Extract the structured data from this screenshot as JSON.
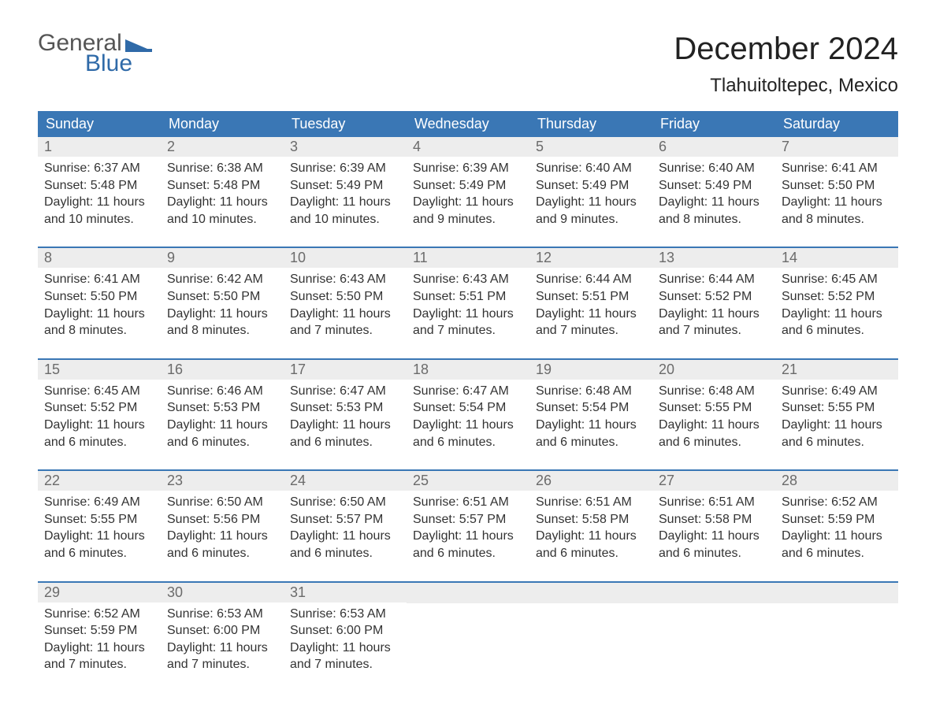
{
  "brand": {
    "text1": "General",
    "text2": "Blue",
    "flag_color": "#2f6aa8"
  },
  "title": "December 2024",
  "location": "Tlahuitoltepec, Mexico",
  "colors": {
    "header_bg": "#3a77b5",
    "header_text": "#ffffff",
    "daynum_bg": "#ededed",
    "daynum_text": "#6b6b6b",
    "body_text": "#333333",
    "background": "#ffffff",
    "rule": "#3a77b5"
  },
  "typography": {
    "title_fontsize": 40,
    "location_fontsize": 24,
    "header_fontsize": 18,
    "daynum_fontsize": 18,
    "body_fontsize": 16,
    "font_family": "Arial"
  },
  "day_labels": [
    "Sunday",
    "Monday",
    "Tuesday",
    "Wednesday",
    "Thursday",
    "Friday",
    "Saturday"
  ],
  "weeks": [
    [
      {
        "n": "1",
        "sunrise": "Sunrise: 6:37 AM",
        "sunset": "Sunset: 5:48 PM",
        "d1": "Daylight: 11 hours",
        "d2": "and 10 minutes."
      },
      {
        "n": "2",
        "sunrise": "Sunrise: 6:38 AM",
        "sunset": "Sunset: 5:48 PM",
        "d1": "Daylight: 11 hours",
        "d2": "and 10 minutes."
      },
      {
        "n": "3",
        "sunrise": "Sunrise: 6:39 AM",
        "sunset": "Sunset: 5:49 PM",
        "d1": "Daylight: 11 hours",
        "d2": "and 10 minutes."
      },
      {
        "n": "4",
        "sunrise": "Sunrise: 6:39 AM",
        "sunset": "Sunset: 5:49 PM",
        "d1": "Daylight: 11 hours",
        "d2": "and 9 minutes."
      },
      {
        "n": "5",
        "sunrise": "Sunrise: 6:40 AM",
        "sunset": "Sunset: 5:49 PM",
        "d1": "Daylight: 11 hours",
        "d2": "and 9 minutes."
      },
      {
        "n": "6",
        "sunrise": "Sunrise: 6:40 AM",
        "sunset": "Sunset: 5:49 PM",
        "d1": "Daylight: 11 hours",
        "d2": "and 8 minutes."
      },
      {
        "n": "7",
        "sunrise": "Sunrise: 6:41 AM",
        "sunset": "Sunset: 5:50 PM",
        "d1": "Daylight: 11 hours",
        "d2": "and 8 minutes."
      }
    ],
    [
      {
        "n": "8",
        "sunrise": "Sunrise: 6:41 AM",
        "sunset": "Sunset: 5:50 PM",
        "d1": "Daylight: 11 hours",
        "d2": "and 8 minutes."
      },
      {
        "n": "9",
        "sunrise": "Sunrise: 6:42 AM",
        "sunset": "Sunset: 5:50 PM",
        "d1": "Daylight: 11 hours",
        "d2": "and 8 minutes."
      },
      {
        "n": "10",
        "sunrise": "Sunrise: 6:43 AM",
        "sunset": "Sunset: 5:50 PM",
        "d1": "Daylight: 11 hours",
        "d2": "and 7 minutes."
      },
      {
        "n": "11",
        "sunrise": "Sunrise: 6:43 AM",
        "sunset": "Sunset: 5:51 PM",
        "d1": "Daylight: 11 hours",
        "d2": "and 7 minutes."
      },
      {
        "n": "12",
        "sunrise": "Sunrise: 6:44 AM",
        "sunset": "Sunset: 5:51 PM",
        "d1": "Daylight: 11 hours",
        "d2": "and 7 minutes."
      },
      {
        "n": "13",
        "sunrise": "Sunrise: 6:44 AM",
        "sunset": "Sunset: 5:52 PM",
        "d1": "Daylight: 11 hours",
        "d2": "and 7 minutes."
      },
      {
        "n": "14",
        "sunrise": "Sunrise: 6:45 AM",
        "sunset": "Sunset: 5:52 PM",
        "d1": "Daylight: 11 hours",
        "d2": "and 6 minutes."
      }
    ],
    [
      {
        "n": "15",
        "sunrise": "Sunrise: 6:45 AM",
        "sunset": "Sunset: 5:52 PM",
        "d1": "Daylight: 11 hours",
        "d2": "and 6 minutes."
      },
      {
        "n": "16",
        "sunrise": "Sunrise: 6:46 AM",
        "sunset": "Sunset: 5:53 PM",
        "d1": "Daylight: 11 hours",
        "d2": "and 6 minutes."
      },
      {
        "n": "17",
        "sunrise": "Sunrise: 6:47 AM",
        "sunset": "Sunset: 5:53 PM",
        "d1": "Daylight: 11 hours",
        "d2": "and 6 minutes."
      },
      {
        "n": "18",
        "sunrise": "Sunrise: 6:47 AM",
        "sunset": "Sunset: 5:54 PM",
        "d1": "Daylight: 11 hours",
        "d2": "and 6 minutes."
      },
      {
        "n": "19",
        "sunrise": "Sunrise: 6:48 AM",
        "sunset": "Sunset: 5:54 PM",
        "d1": "Daylight: 11 hours",
        "d2": "and 6 minutes."
      },
      {
        "n": "20",
        "sunrise": "Sunrise: 6:48 AM",
        "sunset": "Sunset: 5:55 PM",
        "d1": "Daylight: 11 hours",
        "d2": "and 6 minutes."
      },
      {
        "n": "21",
        "sunrise": "Sunrise: 6:49 AM",
        "sunset": "Sunset: 5:55 PM",
        "d1": "Daylight: 11 hours",
        "d2": "and 6 minutes."
      }
    ],
    [
      {
        "n": "22",
        "sunrise": "Sunrise: 6:49 AM",
        "sunset": "Sunset: 5:55 PM",
        "d1": "Daylight: 11 hours",
        "d2": "and 6 minutes."
      },
      {
        "n": "23",
        "sunrise": "Sunrise: 6:50 AM",
        "sunset": "Sunset: 5:56 PM",
        "d1": "Daylight: 11 hours",
        "d2": "and 6 minutes."
      },
      {
        "n": "24",
        "sunrise": "Sunrise: 6:50 AM",
        "sunset": "Sunset: 5:57 PM",
        "d1": "Daylight: 11 hours",
        "d2": "and 6 minutes."
      },
      {
        "n": "25",
        "sunrise": "Sunrise: 6:51 AM",
        "sunset": "Sunset: 5:57 PM",
        "d1": "Daylight: 11 hours",
        "d2": "and 6 minutes."
      },
      {
        "n": "26",
        "sunrise": "Sunrise: 6:51 AM",
        "sunset": "Sunset: 5:58 PM",
        "d1": "Daylight: 11 hours",
        "d2": "and 6 minutes."
      },
      {
        "n": "27",
        "sunrise": "Sunrise: 6:51 AM",
        "sunset": "Sunset: 5:58 PM",
        "d1": "Daylight: 11 hours",
        "d2": "and 6 minutes."
      },
      {
        "n": "28",
        "sunrise": "Sunrise: 6:52 AM",
        "sunset": "Sunset: 5:59 PM",
        "d1": "Daylight: 11 hours",
        "d2": "and 6 minutes."
      }
    ],
    [
      {
        "n": "29",
        "sunrise": "Sunrise: 6:52 AM",
        "sunset": "Sunset: 5:59 PM",
        "d1": "Daylight: 11 hours",
        "d2": "and 7 minutes."
      },
      {
        "n": "30",
        "sunrise": "Sunrise: 6:53 AM",
        "sunset": "Sunset: 6:00 PM",
        "d1": "Daylight: 11 hours",
        "d2": "and 7 minutes."
      },
      {
        "n": "31",
        "sunrise": "Sunrise: 6:53 AM",
        "sunset": "Sunset: 6:00 PM",
        "d1": "Daylight: 11 hours",
        "d2": "and 7 minutes."
      },
      null,
      null,
      null,
      null
    ]
  ]
}
